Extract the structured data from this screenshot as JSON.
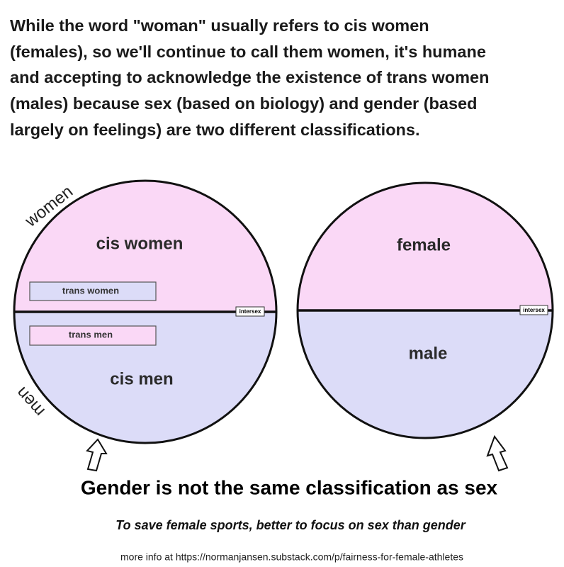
{
  "intro_lines": [
    "While the word \"woman\" usually refers to cis women",
    "(females), so we'll continue to call them women, it's humane",
    "and accepting to acknowledge the existence of trans women",
    "(males) because sex (based on biology) and gender (based",
    "largely on feelings) are two different classifications."
  ],
  "left_diagram": {
    "outer_top": "women",
    "outer_bottom": "men",
    "top": "cis women",
    "boxes": [
      "trans women",
      "trans men"
    ],
    "bottom": "cis men",
    "divider": "intersex"
  },
  "right_diagram": {
    "top": "female",
    "bottom": "male",
    "divider": "intersex"
  },
  "caption": "Gender is not the same classification as sex",
  "subcaption": "To save female sports, better to focus on sex than gender",
  "footer": "more info at https://normanjansen.substack.com/p/fairness-for-female-athletes"
}
